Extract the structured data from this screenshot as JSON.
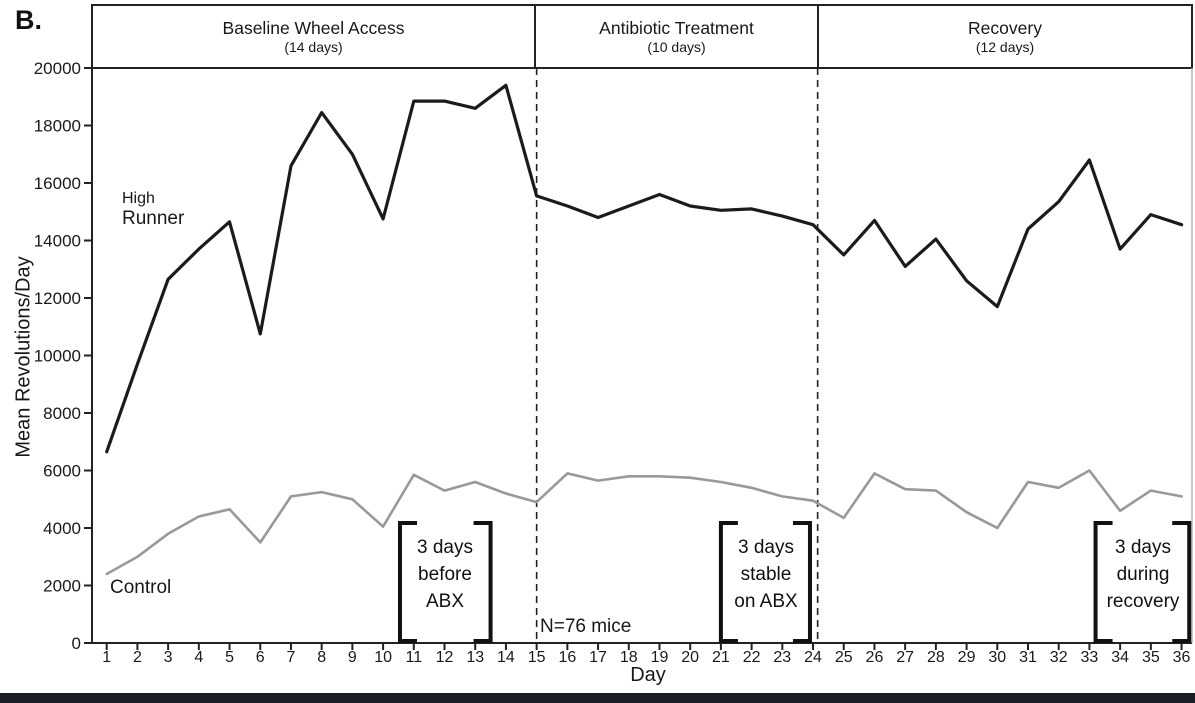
{
  "panel_label": "B.",
  "header": {
    "phases": [
      {
        "title": "Baseline Wheel Access",
        "subtitle": "(14 days)"
      },
      {
        "title": "Antibiotic Treatment",
        "subtitle": "(10 days)"
      },
      {
        "title": "Recovery",
        "subtitle": "(12 days)"
      }
    ]
  },
  "axes": {
    "ylabel": "Mean Revolutions/Day",
    "xlabel": "Day"
  },
  "labels": {
    "high_runner_line1": "High",
    "high_runner_line2": "Runner",
    "control": "Control",
    "sample_note": "N=76 mice"
  },
  "annotations": [
    {
      "lines": [
        "3 days",
        "before",
        "ABX"
      ],
      "from_day": 10.55,
      "to_day": 13.5
    },
    {
      "lines": [
        "3 days",
        "stable",
        "on ABX"
      ],
      "from_day": 21.0,
      "to_day": 23.9
    },
    {
      "lines": [
        "3 days",
        "during",
        "recovery"
      ],
      "from_day": 33.2,
      "to_day": 36.25
    }
  ],
  "colors": {
    "high_runner": "#1b1b1b",
    "control": "#999999",
    "frame": "#222222",
    "right_border": "#b5b5b5",
    "bracket": "#111111",
    "bottom_bar": "#1b1e26"
  },
  "chart_data": {
    "type": "line",
    "title": "",
    "xlabel": "Day",
    "ylabel": "Mean Revolutions/Day",
    "xlim": [
      1,
      36
    ],
    "ylim": [
      0,
      20000
    ],
    "yticks": [
      0,
      2000,
      4000,
      6000,
      8000,
      10000,
      12000,
      14000,
      16000,
      18000,
      20000
    ],
    "grid": false,
    "legend_position": "inline-labels",
    "phase_divider_days": [
      15,
      24.15
    ],
    "x": [
      1,
      2,
      3,
      4,
      5,
      6,
      7,
      8,
      9,
      10,
      11,
      12,
      13,
      14,
      15,
      16,
      17,
      18,
      19,
      20,
      21,
      22,
      23,
      24,
      25,
      26,
      27,
      28,
      29,
      30,
      31,
      32,
      33,
      34,
      35,
      36
    ],
    "series": [
      {
        "name": "High Runner",
        "color_key": "high_runner",
        "values": [
          6650,
          9700,
          12650,
          13700,
          14650,
          10750,
          16600,
          18450,
          17000,
          14750,
          18850,
          18850,
          18600,
          19400,
          15550,
          15200,
          14800,
          15200,
          15600,
          15200,
          15050,
          15100,
          14850,
          14550,
          13500,
          14700,
          13100,
          14050,
          12600,
          11700,
          14400,
          15350,
          16800,
          13700,
          14900,
          14550
        ]
      },
      {
        "name": "Control",
        "color_key": "control",
        "values": [
          2400,
          3000,
          3800,
          4400,
          4650,
          3500,
          5100,
          5250,
          5000,
          4050,
          5850,
          5300,
          5600,
          5200,
          4900,
          5900,
          5650,
          5800,
          5800,
          5750,
          5600,
          5400,
          5100,
          4950,
          4350,
          5900,
          5350,
          5300,
          4550,
          4000,
          5600,
          5400,
          6000,
          4600,
          5300,
          5100
        ]
      }
    ]
  }
}
